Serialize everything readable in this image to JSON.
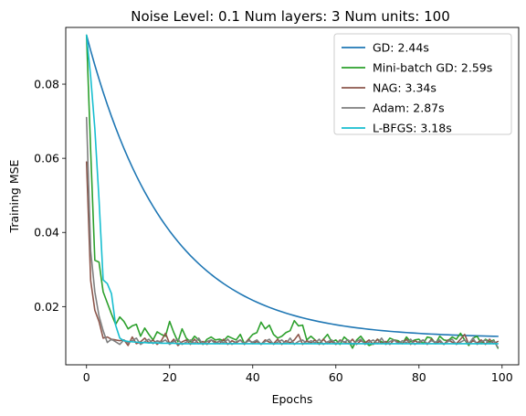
{
  "chart_data": {
    "type": "line",
    "title": "Noise Level: 0.1   Num layers: 3   Num units: 100",
    "xlabel": "Epochs",
    "ylabel": "Training MSE",
    "xlim": [
      -5,
      104
    ],
    "ylim": [
      0.0043,
      0.0953
    ],
    "xticks": [
      0,
      20,
      40,
      60,
      80,
      100
    ],
    "yticks": [
      0.02,
      0.04,
      0.06,
      0.08
    ],
    "ytick_labels": [
      "0.02",
      "0.04",
      "0.06",
      "0.08"
    ],
    "grid": false,
    "legend_position": "upper right",
    "series": [
      {
        "name": "GD: 2.44s",
        "color": "#1f77b4",
        "shape": "exp",
        "start": 0.0932,
        "plateau": 0.0115,
        "decay": 0.052,
        "epochs": 100
      },
      {
        "name": "Mini-batch GD: 2.59s",
        "color": "#2ca02c",
        "values": [
          0.0932,
          0.062,
          0.0325,
          0.032,
          0.024,
          0.021,
          0.018,
          0.0152,
          0.0172,
          0.016,
          0.014,
          0.0148,
          0.0152,
          0.012,
          0.0142,
          0.0125,
          0.011,
          0.0132,
          0.0125,
          0.012,
          0.016,
          0.013,
          0.0105,
          0.014,
          0.0115,
          0.0105,
          0.012,
          0.011,
          0.0098,
          0.0112,
          0.0118,
          0.011,
          0.0112,
          0.0108,
          0.012,
          0.0115,
          0.011,
          0.0125,
          0.01,
          0.0112,
          0.0125,
          0.013,
          0.0158,
          0.014,
          0.015,
          0.0125,
          0.0115,
          0.012,
          0.013,
          0.0135,
          0.0162,
          0.0148,
          0.015,
          0.011,
          0.012,
          0.011,
          0.01,
          0.0112,
          0.0125,
          0.0105,
          0.011,
          0.0098,
          0.0118,
          0.0108,
          0.0088,
          0.011,
          0.012,
          0.0105,
          0.0095,
          0.01,
          0.0112,
          0.0105,
          0.01,
          0.0115,
          0.011,
          0.0108,
          0.01,
          0.0118,
          0.0105,
          0.011,
          0.0112,
          0.01,
          0.0118,
          0.0115,
          0.01,
          0.012,
          0.011,
          0.0108,
          0.0118,
          0.0112,
          0.0128,
          0.011,
          0.0095,
          0.0115,
          0.012,
          0.01,
          0.0112,
          0.0105,
          0.011,
          0.0088
        ]
      },
      {
        "name": "NAG: 3.34s",
        "color": "#8c564b",
        "values": [
          0.059,
          0.027,
          0.019,
          0.016,
          0.0115,
          0.0118,
          0.0112,
          0.011,
          0.0108,
          0.011,
          0.0095,
          0.0118,
          0.01,
          0.0105,
          0.0115,
          0.0102,
          0.011,
          0.0098,
          0.0108,
          0.0128,
          0.01,
          0.0112,
          0.0095,
          0.0105,
          0.011,
          0.0098,
          0.0112,
          0.01,
          0.0106,
          0.0098,
          0.011,
          0.0105,
          0.01,
          0.0112,
          0.0098,
          0.0108,
          0.0102,
          0.011,
          0.0098,
          0.0112,
          0.01,
          0.0106,
          0.0098,
          0.011,
          0.0104,
          0.01,
          0.0112,
          0.0098,
          0.0108,
          0.0102,
          0.011,
          0.0125,
          0.0098,
          0.0108,
          0.0102,
          0.011,
          0.0098,
          0.0112,
          0.01,
          0.0106,
          0.0098,
          0.011,
          0.0104,
          0.01,
          0.0112,
          0.0098,
          0.0108,
          0.0102,
          0.011,
          0.0098,
          0.0112,
          0.01,
          0.0106,
          0.0098,
          0.011,
          0.0104,
          0.01,
          0.0112,
          0.0098,
          0.0108,
          0.0102,
          0.011,
          0.0098,
          0.0112,
          0.01,
          0.0106,
          0.0098,
          0.011,
          0.0104,
          0.01,
          0.0112,
          0.0125,
          0.0098,
          0.0108,
          0.0102,
          0.011,
          0.0098,
          0.0112,
          0.01,
          0.0106
        ]
      },
      {
        "name": "Adam: 2.87s",
        "color": "#7f7f7f",
        "values": [
          0.071,
          0.035,
          0.024,
          0.0175,
          0.0135,
          0.0103,
          0.0112,
          0.0105,
          0.0098,
          0.011,
          0.0102,
          0.0108,
          0.0115,
          0.0098,
          0.0105,
          0.0112,
          0.01,
          0.0108,
          0.0104,
          0.011,
          0.0098,
          0.0106,
          0.0112,
          0.0098,
          0.0104,
          0.011,
          0.01,
          0.0115,
          0.0098,
          0.0106,
          0.011,
          0.01,
          0.0108,
          0.0102,
          0.0112,
          0.0098,
          0.0105,
          0.011,
          0.01,
          0.0108,
          0.0104,
          0.011,
          0.0098,
          0.0106,
          0.0112,
          0.0098,
          0.0104,
          0.011,
          0.01,
          0.0115,
          0.0098,
          0.0106,
          0.011,
          0.01,
          0.0108,
          0.0102,
          0.0112,
          0.0098,
          0.0105,
          0.011,
          0.01,
          0.0108,
          0.0104,
          0.011,
          0.0098,
          0.0106,
          0.0112,
          0.0098,
          0.0104,
          0.011,
          0.01,
          0.0115,
          0.0098,
          0.0106,
          0.011,
          0.01,
          0.0108,
          0.0102,
          0.0112,
          0.0098,
          0.0105,
          0.011,
          0.01,
          0.0108,
          0.0104,
          0.011,
          0.0098,
          0.0106,
          0.0112,
          0.0098,
          0.0104,
          0.011,
          0.01,
          0.0115,
          0.0098,
          0.0106,
          0.011,
          0.01,
          0.0108,
          0.009
        ]
      },
      {
        "name": "L-BFGS: 3.18s",
        "color": "#17becf",
        "values": [
          0.0932,
          0.082,
          0.068,
          0.049,
          0.0272,
          0.0262,
          0.0235,
          0.015,
          0.0115,
          0.0108,
          0.0106,
          0.0105,
          0.0104,
          0.0103,
          0.0103,
          0.0102,
          0.0102,
          0.0102,
          0.0101,
          0.0101,
          0.0101,
          0.0101,
          0.01,
          0.01,
          0.01,
          0.01,
          0.01,
          0.01,
          0.01,
          0.01,
          0.01,
          0.01,
          0.01,
          0.01,
          0.01,
          0.01,
          0.01,
          0.01,
          0.01,
          0.01,
          0.01,
          0.01,
          0.01,
          0.01,
          0.01,
          0.01,
          0.01,
          0.01,
          0.01,
          0.01,
          0.01,
          0.01,
          0.01,
          0.01,
          0.01,
          0.01,
          0.01,
          0.01,
          0.01,
          0.01,
          0.01,
          0.01,
          0.01,
          0.01,
          0.01,
          0.01,
          0.01,
          0.01,
          0.01,
          0.01,
          0.01,
          0.01,
          0.01,
          0.01,
          0.01,
          0.01,
          0.01,
          0.01,
          0.01,
          0.01,
          0.01,
          0.01,
          0.01,
          0.01,
          0.01,
          0.01,
          0.01,
          0.01,
          0.01,
          0.01,
          0.01,
          0.01,
          0.01,
          0.01,
          0.01,
          0.01,
          0.01,
          0.01,
          0.01,
          0.01
        ]
      }
    ]
  }
}
